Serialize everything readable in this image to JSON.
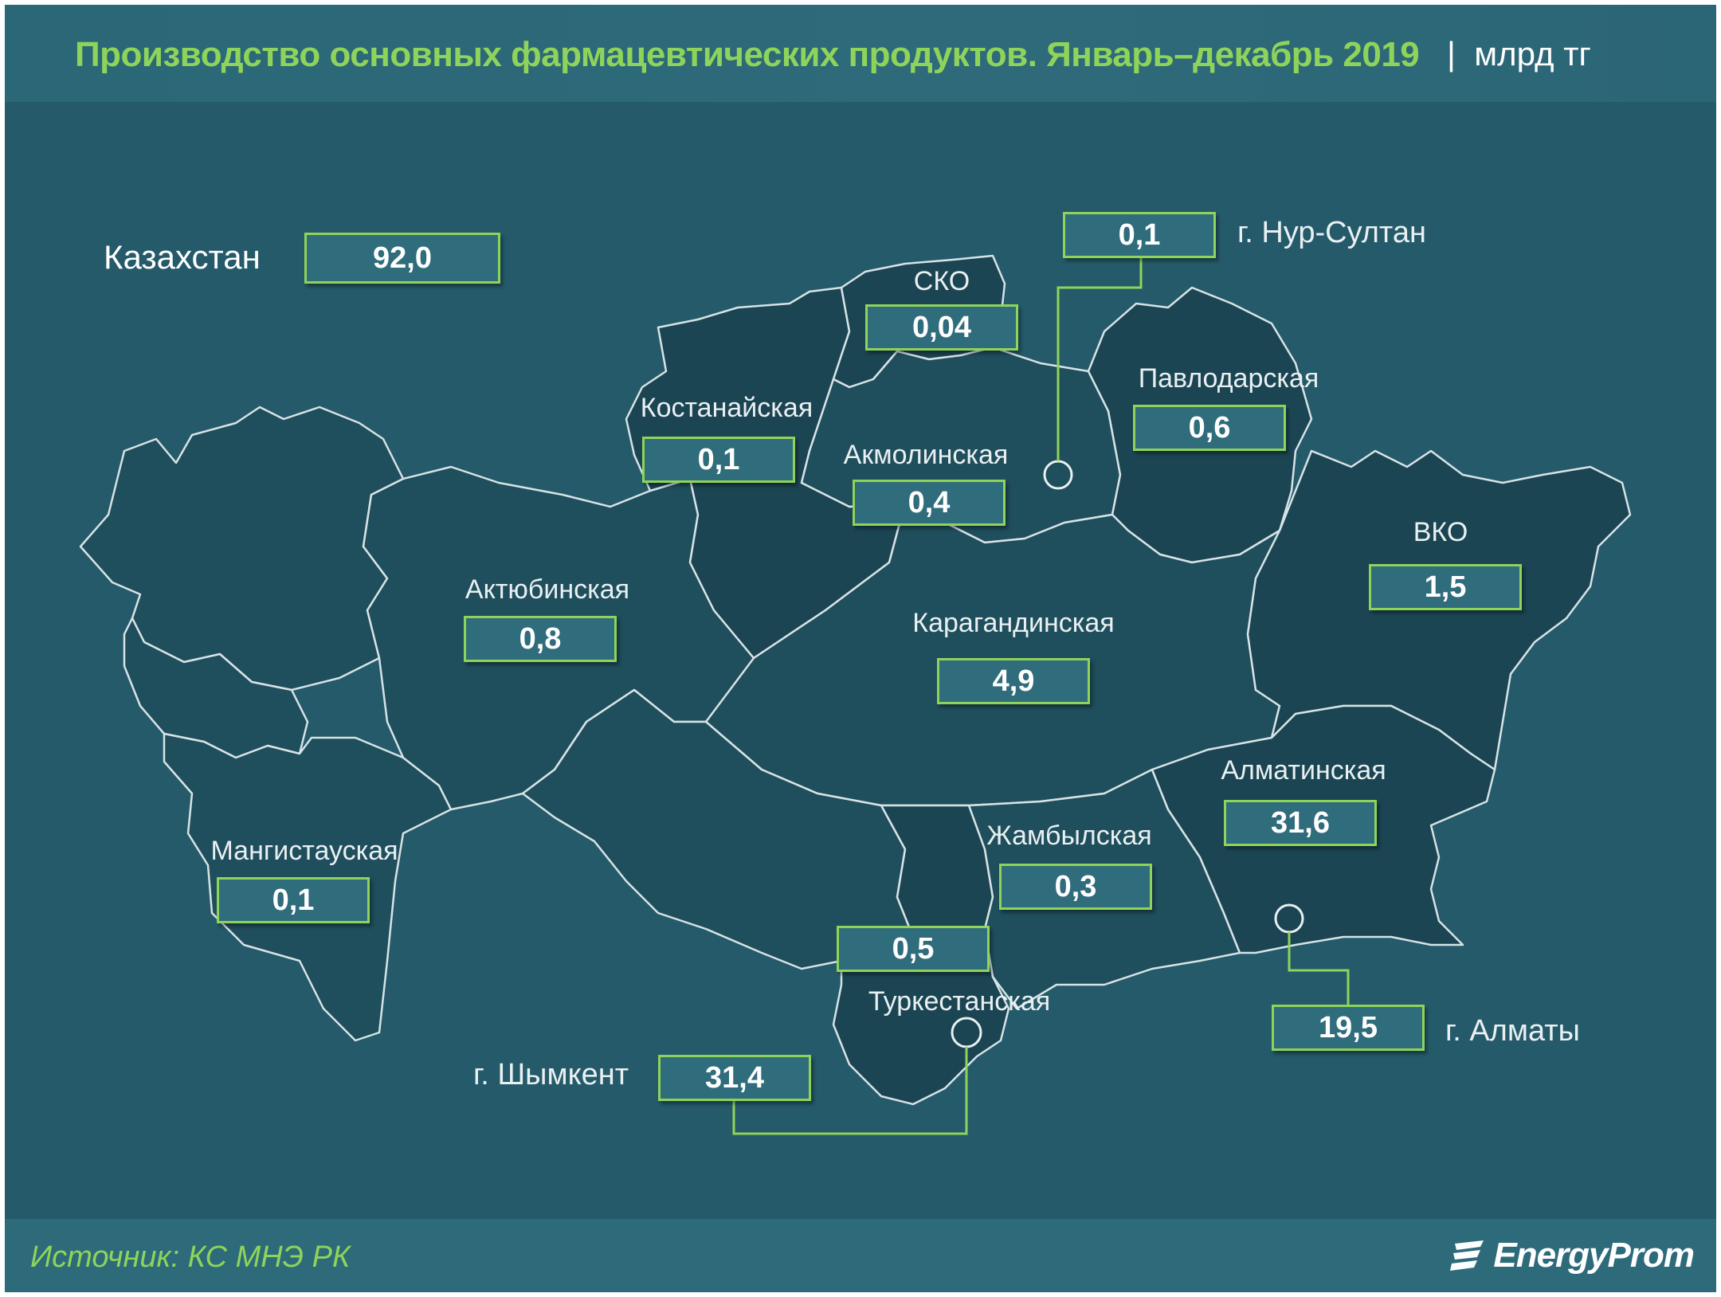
{
  "title": "Производство основных фармацевтических продуктов. Январь–декабрь 2019",
  "unit_separator": "|",
  "unit": "млрд тг",
  "country": {
    "name": "Казахстан",
    "value": "92,0"
  },
  "regions": [
    {
      "name": "СКО",
      "value": "0,04"
    },
    {
      "name": "Костанайская",
      "value": "0,1"
    },
    {
      "name": "Акмолинская",
      "value": "0,4"
    },
    {
      "name": "Павлодарская",
      "value": "0,6"
    },
    {
      "name": "ВКО",
      "value": "1,5"
    },
    {
      "name": "Актюбинская",
      "value": "0,8"
    },
    {
      "name": "Карагандинская",
      "value": "4,9"
    },
    {
      "name": "Алматинская",
      "value": "31,6"
    },
    {
      "name": "Мангистауская",
      "value": "0,1"
    },
    {
      "name": "Жамбылская",
      "value": "0,3"
    },
    {
      "name": "Туркестанская",
      "value": "0,5"
    }
  ],
  "cities": [
    {
      "name": "г. Нур-Султан",
      "value": "0,1"
    },
    {
      "name": "г. Алматы",
      "value": "19,5"
    },
    {
      "name": "г. Шымкент",
      "value": "31,4"
    }
  ],
  "source": "Источник: КС МНЭ РК",
  "logo_text": "EnergyProm",
  "colors": {
    "background": "#245a69",
    "accent": "#8fd45a",
    "region_fill": "#1f4e5c",
    "region_border": "#d7e3e6"
  }
}
